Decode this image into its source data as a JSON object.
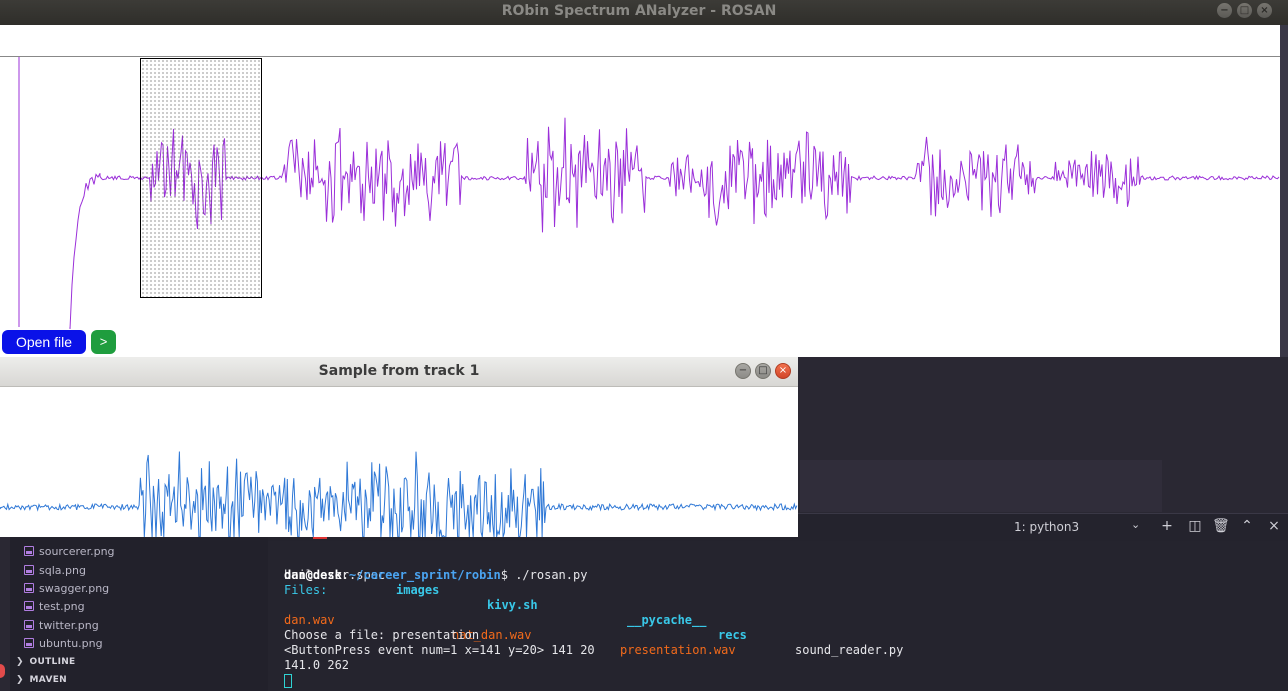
{
  "main_window": {
    "title": "RObin Spectrum ANalyzer - ROSAN",
    "controls": {
      "minimize": "−",
      "maximize": "□",
      "close": "×"
    },
    "open_button_label": "Open file",
    "next_button_label": ">"
  },
  "sample_window": {
    "title": "Sample from track 1",
    "controls": {
      "minimize": "−",
      "maximize": "□",
      "close": "×"
    }
  },
  "editor": {
    "panel": {
      "terminal_select": "1: python3",
      "icons": [
        "chevron-down-icon",
        "plus-icon",
        "split-icon",
        "trash-icon",
        "chevron-up-icon",
        "close-icon"
      ]
    },
    "sidebar": {
      "files": [
        "sourcerer.png",
        "sqla.png",
        "swagger.png",
        "test.png",
        "twitter.png",
        "ubuntu.png"
      ],
      "sections": [
        "OUTLINE",
        "MAVEN"
      ]
    },
    "terminal": {
      "ls_row": [
        {
          "text": "buildozer.spec",
          "style": "white"
        },
        {
          "text": "images",
          "style": "cyan"
        },
        {
          "text": "kivy.sh",
          "style": "cyan"
        },
        {
          "text": "__pycache__",
          "style": "cyan"
        },
        {
          "text": "recs",
          "style": "cyan"
        },
        {
          "text": "sound_reader.py",
          "style": "white"
        }
      ],
      "prompt_user": "dan@desk",
      "prompt_path": "~/career_sprint/robin",
      "prompt_cmd": "$ ./rosan.py",
      "files_label": "Files:",
      "wav_files": [
        "dan.wav",
        "nat_dan.wav",
        "presentation.wav"
      ],
      "choose_line": "Choose a file: presentation",
      "event_line": "<ButtonPress event num=1 x=141 y=20> 141 20",
      "result_line": "141.0 262"
    }
  },
  "colors": {
    "main_waveform": "#9b30d9",
    "sample_waveform": "#2f78d6",
    "open_button": "#0a12e8",
    "next_button": "#1f9d3e"
  }
}
